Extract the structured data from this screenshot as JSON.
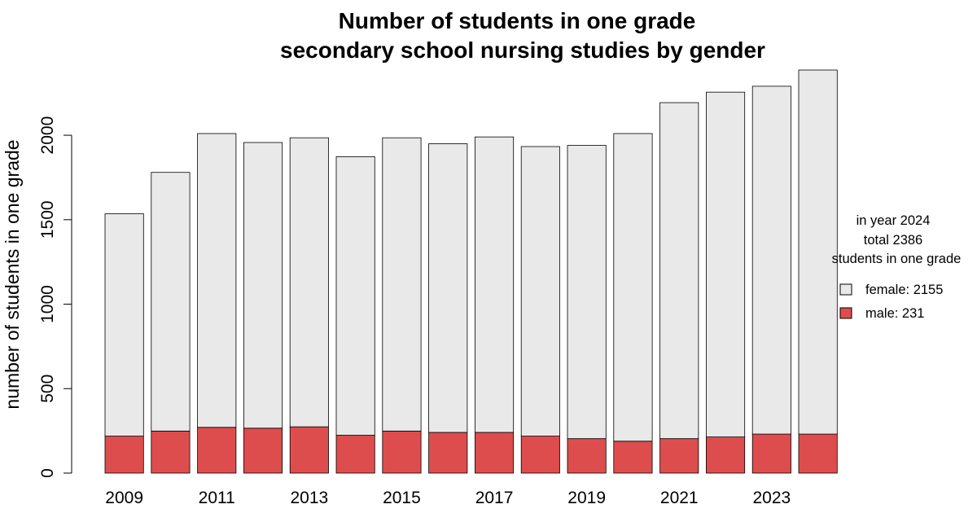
{
  "chart_data": {
    "type": "bar",
    "stacked": true,
    "title_lines": [
      "Number of  students in one grade",
      "secondary school nursing studies by gender"
    ],
    "xlabel": "",
    "ylabel": "number of students in one grade",
    "categories": [
      "2009",
      "2010",
      "2011",
      "2012",
      "2013",
      "2014",
      "2015",
      "2016",
      "2017",
      "2018",
      "2019",
      "2020",
      "2021",
      "2022",
      "2023",
      "2024"
    ],
    "x_tick_labels": [
      "2009",
      "2011",
      "2013",
      "2015",
      "2017",
      "2019",
      "2021",
      "2023"
    ],
    "y_ticks": [
      0,
      500,
      1000,
      1500,
      2000
    ],
    "ylim": [
      0,
      2386
    ],
    "grid": false,
    "legend_position": "right",
    "series": [
      {
        "name": "male",
        "color": "#de4d4d",
        "values": [
          219,
          249,
          271,
          266,
          274,
          224,
          249,
          241,
          241,
          219,
          204,
          189,
          204,
          214,
          231,
          231
        ]
      },
      {
        "name": "female",
        "color": "#e9e9e9",
        "values": [
          1316,
          1531,
          1739,
          1691,
          1711,
          1649,
          1736,
          1709,
          1749,
          1714,
          1736,
          1821,
          1989,
          2041,
          2059,
          2155
        ]
      }
    ],
    "annotation_lines": [
      "in year 2024",
      "total 2386",
      "students in one grade"
    ],
    "legend_entries": [
      {
        "label": "female: 2155",
        "color": "#e9e9e9"
      },
      {
        "label": "male: 231",
        "color": "#de4d4d"
      }
    ]
  }
}
